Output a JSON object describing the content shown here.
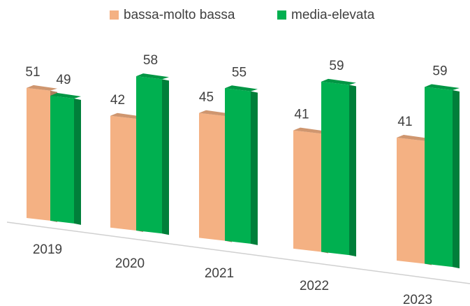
{
  "chart_data": {
    "type": "bar3d",
    "categories": [
      "2019",
      "2020",
      "2021",
      "2022",
      "2023"
    ],
    "series": [
      {
        "name": "bassa-molto bassa",
        "color": "#f4b183",
        "values": [
          51,
          42,
          45,
          41,
          41
        ]
      },
      {
        "name": "media-elevata",
        "color": "#00b050",
        "values": [
          49,
          58,
          55,
          59,
          59
        ]
      }
    ]
  }
}
